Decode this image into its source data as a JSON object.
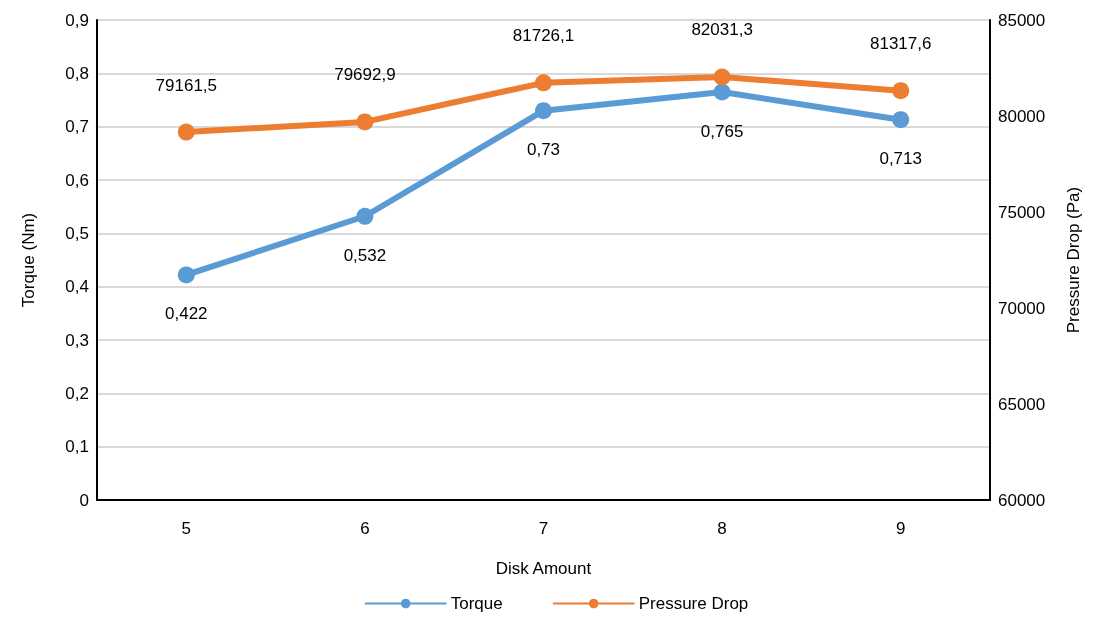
{
  "chart_data": {
    "type": "line",
    "xlabel": "Disk Amount",
    "ylabel": "Torque (Nm)",
    "y2label": "Pressure Drop (Pa)",
    "categories": [
      "5",
      "6",
      "7",
      "8",
      "9"
    ],
    "series": [
      {
        "name": "Torque",
        "color": "#5b9bd5",
        "values": [
          0.422,
          0.532,
          0.73,
          0.765,
          0.713
        ],
        "value_labels": [
          "0,422",
          "0,532",
          "0,73",
          "0,765",
          "0,713"
        ]
      },
      {
        "name": "Pressure Drop",
        "color": "#ed7d31",
        "axis": "y2",
        "values": [
          79161.5,
          79692.9,
          81726.1,
          82031.3,
          81317.6
        ],
        "value_labels": [
          "79161,5",
          "79692,9",
          "81726,1",
          "82031,3",
          "81317,6"
        ]
      }
    ],
    "ylim": [
      0,
      0.9
    ],
    "yticks": [
      0,
      {
        "value": 0.1,
        "label": "0,1"
      },
      {
        "value": 0.2,
        "label": "0,2"
      },
      {
        "value": 0.3,
        "label": "0,3"
      },
      {
        "value": 0.4,
        "label": "0,4"
      },
      {
        "value": 0.5,
        "label": "0,5"
      },
      {
        "value": 0.6,
        "label": "0,6"
      },
      {
        "value": 0.7,
        "label": "0,7"
      },
      {
        "value": 0.8,
        "label": "0,8"
      },
      {
        "value": 0.9,
        "label": "0,9"
      }
    ],
    "y2lim": [
      60000,
      85000
    ],
    "y2ticks": [
      60000,
      65000,
      70000,
      75000,
      80000,
      85000
    ],
    "grid": "y",
    "legend": "bottom",
    "marker": "circle",
    "line_style": "solid"
  }
}
